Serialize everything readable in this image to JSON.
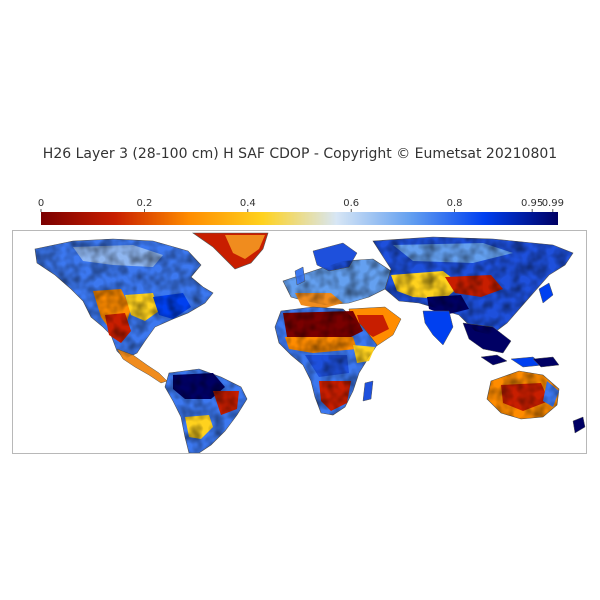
{
  "title": "H26 Layer 3 (28-100 cm) H SAF CDOP - Copyright © Eumetsat 20210801",
  "colorbar": {
    "ticks": [
      {
        "value": 0,
        "label": "0"
      },
      {
        "value": 0.2,
        "label": "0.2"
      },
      {
        "value": 0.4,
        "label": "0.4"
      },
      {
        "value": 0.6,
        "label": "0.6"
      },
      {
        "value": 0.8,
        "label": "0.8"
      },
      {
        "value": 0.95,
        "label": "0.95"
      },
      {
        "value": 0.99,
        "label": "0.99"
      }
    ],
    "range": [
      0,
      1
    ],
    "colors": [
      "#7a0000",
      "#c81e00",
      "#ff8c00",
      "#ffd21e",
      "#d7e6f5",
      "#64a0f0",
      "#0040f0",
      "#000064"
    ]
  },
  "map": {
    "projection": "equirectangular",
    "background": "#ffffff",
    "coastline_color": "#555555"
  }
}
